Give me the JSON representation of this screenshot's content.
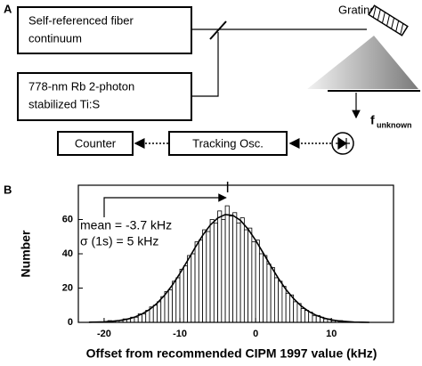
{
  "diagram": {
    "panel_label": "A",
    "source_box": [
      "Self-referenced fiber",
      "continuum"
    ],
    "laser_box": [
      "778-nm Rb 2-photon",
      "stabilized Ti:S"
    ],
    "grating_label": "Grating",
    "signal_label": {
      "main": "f",
      "subscript": "unknown"
    },
    "counter_box": "Counter",
    "tracking_box": "Tracking Osc."
  },
  "chart_data": {
    "type": "histogram",
    "panel_label": "B",
    "xlabel": "Offset from recommended CIPM 1997 value (kHz)",
    "ylabel": "Number",
    "bins": [
      -20,
      -19.5,
      -19,
      -18.5,
      -18,
      -17.5,
      -17,
      -16.5,
      -16,
      -15.5,
      -15,
      -14.5,
      -14,
      -13.5,
      -13,
      -12.5,
      -12,
      -11.5,
      -11,
      -10.5,
      -10,
      -9.5,
      -9,
      -8.5,
      -8,
      -7.5,
      -7,
      -6.5,
      -6,
      -5.5,
      -5,
      -4.5,
      -4,
      -3.5,
      -3,
      -2.5,
      -2,
      -1.5,
      -1,
      -0.5,
      0,
      0.5,
      1,
      1.5,
      2,
      2.5,
      3,
      3.5,
      4,
      4.5,
      5,
      5.5,
      6,
      6.5,
      7,
      7.5,
      8,
      8.5,
      9,
      9.5,
      10,
      10.5,
      11,
      11.5,
      12
    ],
    "values": [
      0,
      1,
      0,
      1,
      1,
      2,
      2,
      3,
      3,
      5,
      5,
      7,
      9,
      10,
      12,
      15,
      18,
      19,
      24,
      26,
      31,
      33,
      39,
      40,
      47,
      48,
      54,
      53,
      60,
      58,
      65,
      60,
      68,
      62,
      64,
      58,
      61,
      54,
      55,
      47,
      48,
      40,
      39,
      34,
      32,
      26,
      24,
      21,
      17,
      16,
      12,
      11,
      8,
      7,
      6,
      4,
      4,
      3,
      2,
      2,
      1,
      1,
      1,
      0
    ],
    "bar_color": "#ffffff",
    "edge_color": "#000000",
    "fit": {
      "color": "#000000",
      "x": [
        -22,
        -21,
        -20,
        -19,
        -18,
        -17,
        -16,
        -15,
        -14,
        -13,
        -12,
        -11,
        -10,
        -9,
        -8,
        -7,
        -6,
        -5,
        -4,
        -3,
        -2,
        -1,
        0,
        1,
        2,
        3,
        4,
        5,
        6,
        7,
        8,
        9,
        10,
        11,
        12,
        13,
        14,
        15
      ],
      "values": [
        0.1,
        0.2,
        0.3,
        0.6,
        1.1,
        1.8,
        3.0,
        4.9,
        7.5,
        11.2,
        15.9,
        21.7,
        28.5,
        35.9,
        43.5,
        50.7,
        56.7,
        60.9,
        62.9,
        62.4,
        59.5,
        54.4,
        47.9,
        40.5,
        32.9,
        25.7,
        19.2,
        13.9,
        9.6,
        6.4,
        4.1,
        2.5,
        1.5,
        0.8,
        0.5,
        0.2,
        0.1,
        0.0
      ]
    },
    "mean_marker": -3.7,
    "annotations": [
      "mean = -3.7 kHz",
      "σ (1s) = 5 kHz"
    ],
    "xlim": [
      -23.4,
      18.2
    ],
    "ylim": [
      0,
      80
    ],
    "xticks": [
      -20,
      -10,
      0,
      10
    ],
    "yticks": [
      0,
      20,
      40,
      60
    ]
  }
}
